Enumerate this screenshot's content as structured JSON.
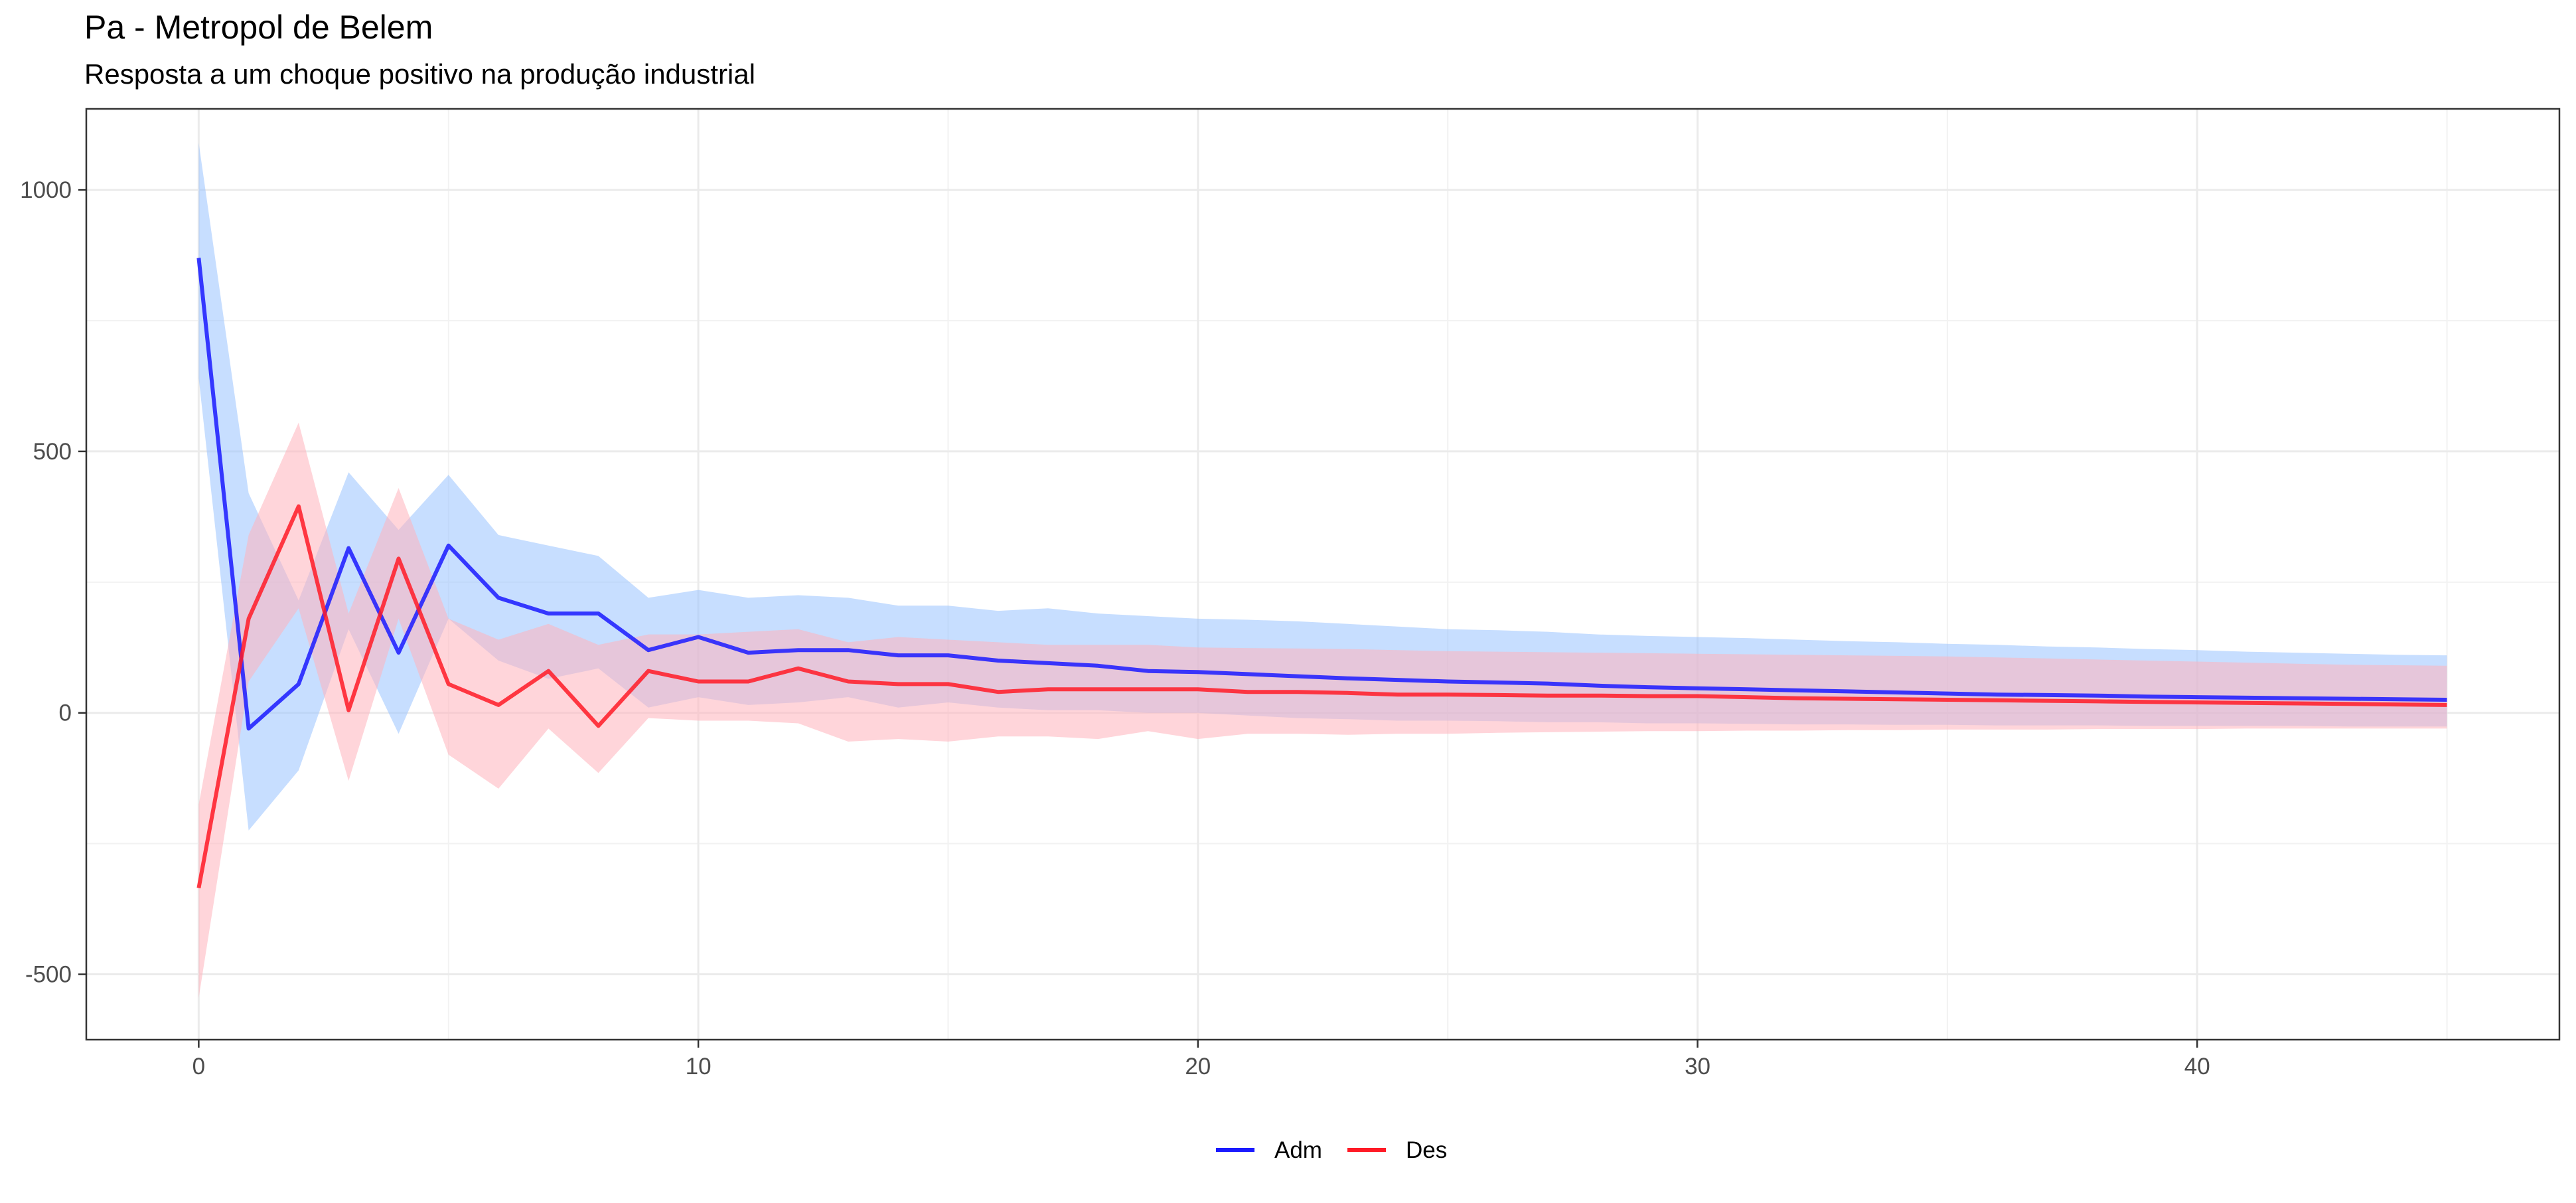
{
  "chart_data": {
    "type": "line",
    "title": "Pa - Metropol de Belem",
    "subtitle": "Resposta a um choque positivo na produção industrial",
    "xlabel": "",
    "ylabel": "",
    "xlim": [
      -2.25,
      47.25
    ],
    "ylim": [
      -625,
      1155
    ],
    "x_ticks": [
      0,
      10,
      20,
      30,
      40
    ],
    "y_ticks": [
      -500,
      0,
      500,
      1000
    ],
    "grid": true,
    "legend_position": "bottom",
    "x": [
      0,
      1,
      2,
      3,
      4,
      5,
      6,
      7,
      8,
      9,
      10,
      11,
      12,
      13,
      14,
      15,
      16,
      17,
      18,
      19,
      20,
      21,
      22,
      23,
      24,
      25,
      26,
      27,
      28,
      29,
      30,
      31,
      32,
      33,
      34,
      35,
      36,
      37,
      38,
      39,
      40,
      41,
      42,
      43,
      44,
      45
    ],
    "series": [
      {
        "name": "Adm",
        "color": "#1a1aff",
        "band_color": "#99c2ff",
        "values": [
          870,
          -30,
          55,
          315,
          115,
          320,
          220,
          190,
          190,
          120,
          145,
          115,
          120,
          120,
          110,
          110,
          100,
          95,
          90,
          80,
          78,
          74,
          70,
          66,
          63,
          60,
          58,
          56,
          52,
          49,
          47,
          45,
          43,
          41,
          39,
          37,
          35,
          34,
          33,
          31,
          30,
          29,
          28,
          27,
          26,
          25
        ],
        "upper": [
          1090,
          420,
          215,
          460,
          350,
          455,
          340,
          320,
          300,
          220,
          235,
          220,
          225,
          220,
          205,
          205,
          195,
          200,
          190,
          185,
          180,
          178,
          175,
          170,
          165,
          160,
          158,
          155,
          150,
          147,
          145,
          143,
          140,
          137,
          135,
          132,
          130,
          127,
          125,
          122,
          120,
          117,
          115,
          113,
          111,
          110
        ],
        "lower": [
          640,
          -225,
          -110,
          160,
          -40,
          180,
          100,
          65,
          85,
          10,
          30,
          15,
          20,
          30,
          10,
          20,
          10,
          5,
          5,
          0,
          0,
          -5,
          -10,
          -12,
          -15,
          -15,
          -16,
          -18,
          -18,
          -20,
          -20,
          -21,
          -22,
          -22,
          -23,
          -23,
          -24,
          -24,
          -24,
          -25,
          -25,
          -25,
          -25,
          -26,
          -26,
          -26
        ]
      },
      {
        "name": "Des",
        "color": "#ff1a26",
        "band_color": "#ffb3bb",
        "values": [
          -335,
          180,
          395,
          5,
          295,
          55,
          15,
          80,
          -25,
          80,
          60,
          60,
          85,
          60,
          55,
          55,
          40,
          45,
          45,
          45,
          45,
          40,
          40,
          38,
          35,
          35,
          34,
          33,
          33,
          32,
          32,
          30,
          28,
          27,
          26,
          25,
          24,
          23,
          22,
          21,
          20,
          19,
          18,
          17,
          16,
          15
        ],
        "upper": [
          -175,
          340,
          555,
          190,
          430,
          180,
          140,
          170,
          130,
          150,
          150,
          155,
          160,
          135,
          145,
          140,
          135,
          130,
          130,
          130,
          125,
          124,
          123,
          122,
          120,
          118,
          117,
          116,
          115,
          114,
          113,
          112,
          111,
          110,
          109,
          108,
          106,
          104,
          102,
          100,
          98,
          96,
          94,
          92,
          91,
          90
        ],
        "lower": [
          -545,
          60,
          200,
          -130,
          180,
          -80,
          -145,
          -30,
          -115,
          -10,
          -15,
          -15,
          -20,
          -55,
          -50,
          -55,
          -45,
          -45,
          -50,
          -35,
          -50,
          -40,
          -40,
          -42,
          -40,
          -40,
          -38,
          -37,
          -36,
          -35,
          -35,
          -34,
          -34,
          -33,
          -33,
          -32,
          -32,
          -32,
          -31,
          -31,
          -31,
          -30,
          -30,
          -30,
          -30,
          -30
        ]
      }
    ]
  }
}
